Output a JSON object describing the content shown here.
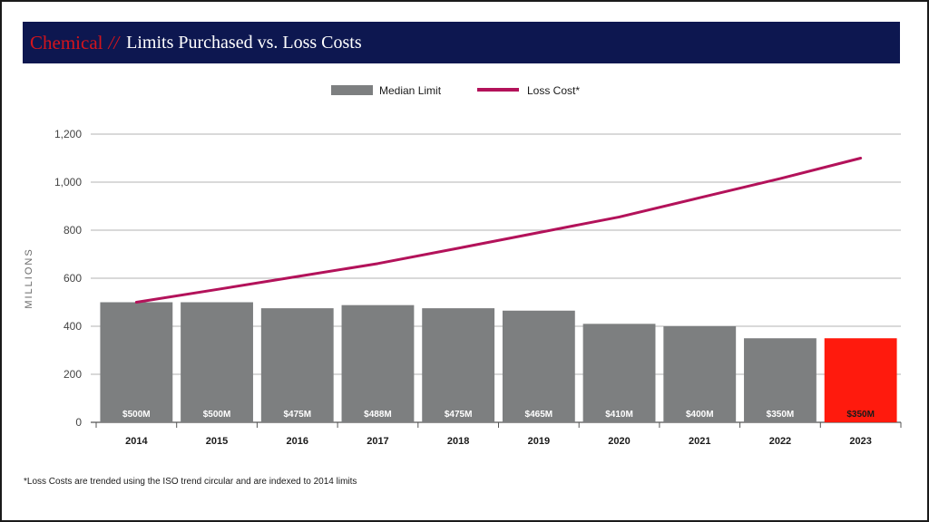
{
  "header": {
    "title_accent": "Chemical",
    "title_separator": "//",
    "title_main": "Limits Purchased vs. Loss Costs"
  },
  "colors": {
    "bar": "#7d7f80",
    "bar_highlight": "#ff1a0d",
    "line": "#b3125a",
    "title_bg": "#0d1750",
    "accent": "#d4141c"
  },
  "chart_data": {
    "type": "bar",
    "title": "Chemical // Limits Purchased vs. Loss Costs",
    "categories": [
      "2014",
      "2015",
      "2016",
      "2017",
      "2018",
      "2019",
      "2020",
      "2021",
      "2022",
      "2023"
    ],
    "series": [
      {
        "name": "Median Limit",
        "kind": "bar",
        "values": [
          500,
          500,
          475,
          488,
          475,
          465,
          410,
          400,
          350,
          350
        ],
        "labels": [
          "$500M",
          "$500M",
          "$475M",
          "$488M",
          "$475M",
          "$465M",
          "$410M",
          "$400M",
          "$350M",
          "$350M"
        ],
        "highlight_index": 9
      },
      {
        "name": "Loss Cost*",
        "kind": "line",
        "values": [
          500,
          553,
          607,
          661,
          725,
          790,
          855,
          935,
          1015,
          1100
        ]
      }
    ],
    "ylabel": "MILLIONS",
    "xlabel": "",
    "ylim": [
      0,
      1200
    ],
    "yticks": [
      0,
      200,
      400,
      600,
      800,
      1000,
      1200
    ],
    "ytick_labels": [
      "0",
      "200",
      "400",
      "600",
      "800",
      "1,000",
      "1,200"
    ],
    "grid": true,
    "legend": "top-center"
  },
  "footnote": "*Loss Costs are trended using the ISO trend circular and are indexed to 2014 limits"
}
